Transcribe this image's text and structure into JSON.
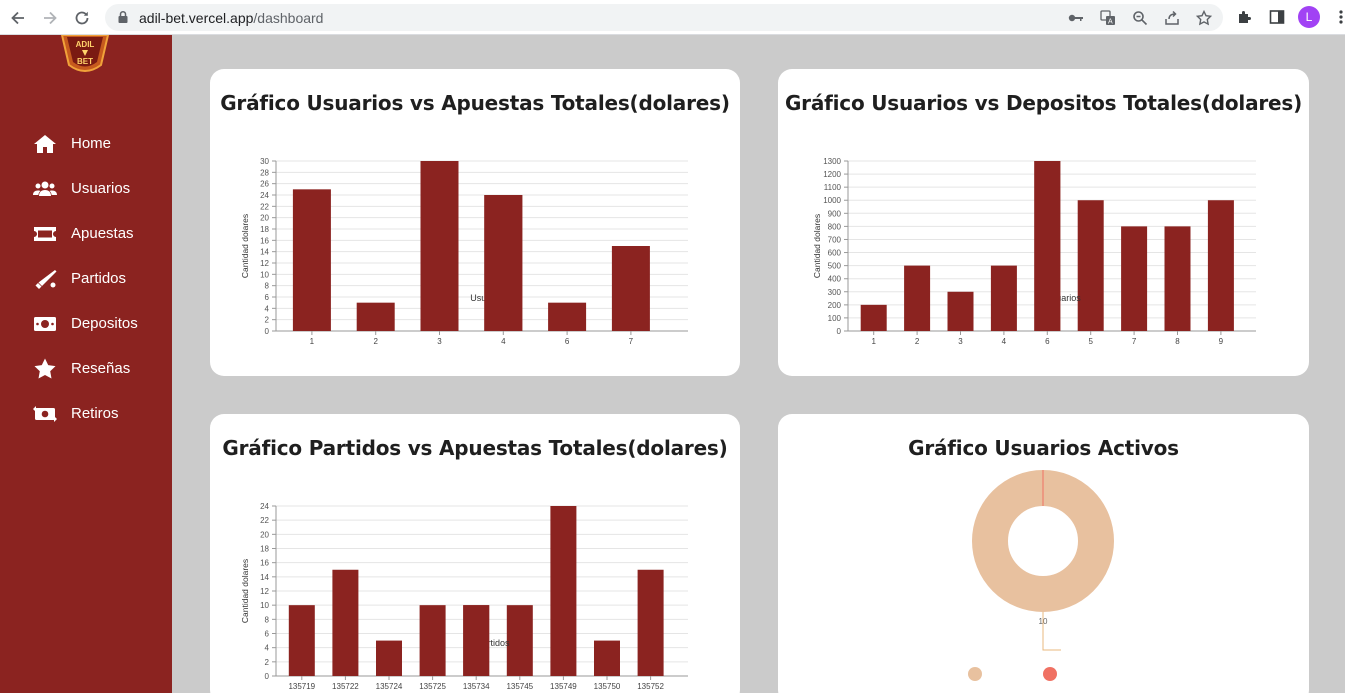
{
  "browser": {
    "url_host": "adil-bet.vercel.app",
    "url_path": "/dashboard",
    "profile_initial": "L"
  },
  "logo": {
    "line1": "ADIL",
    "line2": "BET"
  },
  "sidebar": {
    "items": [
      {
        "label": "Home",
        "icon": "home-icon"
      },
      {
        "label": "Usuarios",
        "icon": "users-icon"
      },
      {
        "label": "Apuestas",
        "icon": "ticket-icon"
      },
      {
        "label": "Partidos",
        "icon": "bat-icon"
      },
      {
        "label": "Depositos",
        "icon": "money-icon"
      },
      {
        "label": "Reseñas",
        "icon": "star-icon"
      },
      {
        "label": "Retiros",
        "icon": "money-transfer-icon"
      }
    ]
  },
  "colors": {
    "sidebar": "#8b2320",
    "bar": "#8b2320",
    "donut": "#e8c19f",
    "background": "#cbcbcb"
  },
  "cards": {
    "c1": {
      "title": "Gráfico Usuarios vs Apuestas Totales(dolares)"
    },
    "c2": {
      "title": "Gráfico Usuarios vs Depositos Totales(dolares)"
    },
    "c3": {
      "title": "Gráfico Partidos vs Apuestas Totales(dolares)"
    },
    "c4": {
      "title": "Gráfico Usuarios Activos"
    }
  },
  "chart_data": [
    {
      "type": "bar",
      "title": "Gráfico Usuarios vs Apuestas Totales(dolares)",
      "ylabel": "Cantidad dolares",
      "xlabel": "Usuarios",
      "categories": [
        "1",
        "2",
        "3",
        "4",
        "6",
        "7"
      ],
      "values": [
        25,
        5,
        30,
        24,
        5,
        15
      ],
      "ylim": [
        0,
        30
      ],
      "yticks": [
        0,
        2,
        4,
        6,
        8,
        10,
        12,
        14,
        16,
        18,
        20,
        22,
        24,
        26,
        28,
        30
      ],
      "grid": true
    },
    {
      "type": "bar",
      "title": "Gráfico Usuarios vs Depositos Totales(dolares)",
      "ylabel": "Cantidad dolares",
      "xlabel": "Id Usuarios",
      "categories": [
        "1",
        "2",
        "3",
        "4",
        "6",
        "5",
        "7",
        "8",
        "9"
      ],
      "values": [
        200,
        500,
        300,
        500,
        1300,
        1000,
        800,
        800,
        1000
      ],
      "ylim": [
        0,
        1300
      ],
      "yticks": [
        0,
        100,
        200,
        300,
        400,
        500,
        600,
        700,
        800,
        900,
        1000,
        1100,
        1200,
        1300
      ],
      "grid": true
    },
    {
      "type": "bar",
      "title": "Gráfico Partidos vs Apuestas Totales(dolares)",
      "ylabel": "Cantidad dolares",
      "xlabel": "Id Partidos",
      "categories": [
        "135719",
        "135722",
        "135724",
        "135725",
        "135734",
        "135745",
        "135749",
        "135750",
        "135752"
      ],
      "values": [
        10,
        15,
        5,
        10,
        10,
        10,
        24,
        5,
        15
      ],
      "ylim": [
        0,
        24
      ],
      "yticks": [
        0,
        2,
        4,
        6,
        8,
        10,
        12,
        14,
        16,
        18,
        20,
        22,
        24
      ],
      "grid": true
    },
    {
      "type": "pie",
      "title": "Gráfico Usuarios Activos",
      "slices": [
        {
          "value": 10,
          "color": "#e8c19f"
        },
        {
          "value": 0,
          "color": "#f07163"
        }
      ],
      "data_label": "10",
      "legend_colors": [
        "#e8c19f",
        "#f07163"
      ]
    }
  ]
}
